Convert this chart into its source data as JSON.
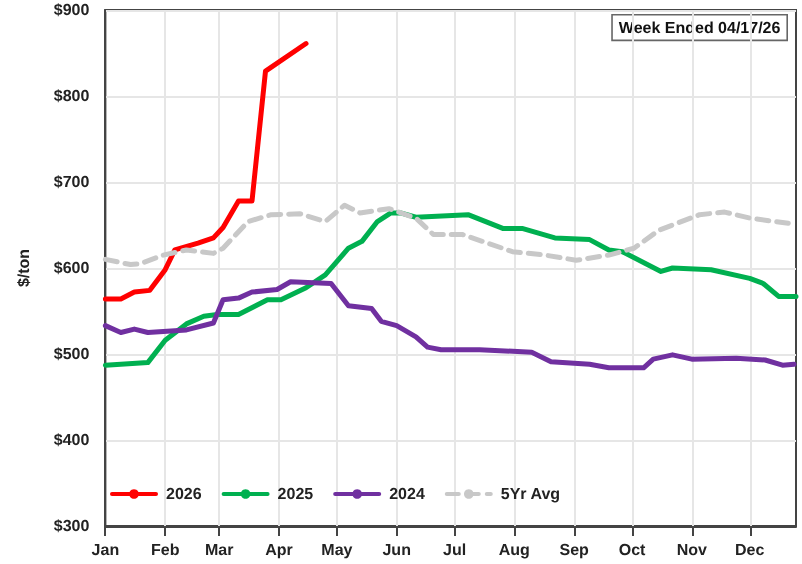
{
  "chart_data": {
    "type": "line",
    "ylabel": "$/ton",
    "annotations": [
      "Week Ended 04/17/26"
    ],
    "xlim": [
      "--01-01",
      "--12-25"
    ],
    "xticks": [
      {
        "value": "--01-01",
        "label": "Jan"
      },
      {
        "value": "--02-01",
        "label": "Feb"
      },
      {
        "value": "--03-01",
        "label": "Mar"
      },
      {
        "value": "--04-01",
        "label": "Apr"
      },
      {
        "value": "--05-01",
        "label": "May"
      },
      {
        "value": "--06-01",
        "label": "Jun"
      },
      {
        "value": "--07-01",
        "label": "Jul"
      },
      {
        "value": "--08-01",
        "label": "Aug"
      },
      {
        "value": "--09-01",
        "label": "Sep"
      },
      {
        "value": "--10-01",
        "label": "Oct"
      },
      {
        "value": "--11-01",
        "label": "Nov"
      },
      {
        "value": "--12-01",
        "label": "Dec"
      }
    ],
    "ylim": [
      300,
      900
    ],
    "yticks": [
      {
        "value": 300,
        "label": "$300"
      },
      {
        "value": 400,
        "label": "$400"
      },
      {
        "value": 500,
        "label": "$500"
      },
      {
        "value": 600,
        "label": "$600"
      },
      {
        "value": 700,
        "label": "$700"
      },
      {
        "value": 800,
        "label": "$800"
      },
      {
        "value": 900,
        "label": "$900"
      }
    ],
    "grid": true,
    "legend": "bottom",
    "marker": "none",
    "series": [
      {
        "name": "2026",
        "color": "#ff0000",
        "line_style": "solid",
        "x": [
          "--01-01",
          "--01-09",
          "--01-16",
          "--01-24",
          "--02-01",
          "--02-06",
          "--02-18",
          "--02-26",
          "--03-03",
          "--03-11",
          "--03-18",
          "--03-25",
          "--04-15"
        ],
        "values": [
          564,
          564,
          572,
          574,
          598,
          621,
          629,
          635,
          647,
          678,
          678,
          829,
          861
        ]
      },
      {
        "name": "2025",
        "color": "#00b050",
        "line_style": "solid",
        "x": [
          "--01-01",
          "--01-23",
          "--02-01",
          "--02-12",
          "--02-21",
          "--02-28",
          "--03-11",
          "--03-26",
          "--04-02",
          "--04-15",
          "--04-25",
          "--05-07",
          "--05-14",
          "--05-22",
          "--05-29",
          "--06-03",
          "--06-11",
          "--07-08",
          "--07-26",
          "--08-05",
          "--08-22",
          "--09-09",
          "--09-19",
          "--09-26",
          "--10-16",
          "--10-22",
          "--11-11",
          "--12-01",
          "--12-08",
          "--12-16",
          "--12-25"
        ],
        "values": [
          487,
          490,
          516,
          535,
          544,
          546,
          546,
          563,
          563,
          577,
          592,
          623,
          631,
          654,
          664,
          664,
          659,
          662,
          646,
          646,
          635,
          633,
          621,
          619,
          596,
          600,
          598,
          588,
          582,
          567,
          567
        ]
      },
      {
        "name": "2024",
        "color": "#7030a0",
        "line_style": "solid",
        "x": [
          "--01-01",
          "--01-09",
          "--01-16",
          "--01-23",
          "--02-12",
          "--02-26",
          "--03-03",
          "--03-11",
          "--03-18",
          "--03-31",
          "--04-07",
          "--04-28",
          "--05-07",
          "--05-19",
          "--05-24",
          "--06-01",
          "--06-11",
          "--06-17",
          "--06-24",
          "--07-14",
          "--08-10",
          "--08-20",
          "--09-09",
          "--09-19",
          "--10-07",
          "--10-12",
          "--10-22",
          "--11-01",
          "--11-24",
          "--12-09",
          "--12-18",
          "--12-24"
        ],
        "values": [
          533,
          525,
          529,
          525,
          528,
          536,
          563,
          565,
          572,
          575,
          584,
          582,
          556,
          553,
          538,
          533,
          520,
          508,
          505,
          505,
          502,
          491,
          488,
          484,
          484,
          494,
          499,
          494,
          495,
          493,
          487,
          488
        ]
      },
      {
        "name": "5Yr Avg",
        "color": "#c8c8c8",
        "line_style": "dashed",
        "x": [
          "--01-01",
          "--01-14",
          "--01-19",
          "--01-31",
          "--02-12",
          "--02-26",
          "--03-03",
          "--03-16",
          "--03-28",
          "--04-12",
          "--04-25",
          "--05-05",
          "--05-13",
          "--05-28",
          "--06-11",
          "--06-20",
          "--07-05",
          "--07-31",
          "--08-17",
          "--09-02",
          "--09-19",
          "--10-02",
          "--10-15",
          "--11-05",
          "--11-18",
          "--12-01",
          "--12-21"
        ],
        "values": [
          610,
          604,
          605,
          615,
          621,
          617,
          623,
          654,
          662,
          663,
          654,
          673,
          664,
          669,
          658,
          639,
          639,
          619,
          615,
          609,
          615,
          623,
          644,
          662,
          665,
          658,
          652
        ]
      }
    ]
  }
}
